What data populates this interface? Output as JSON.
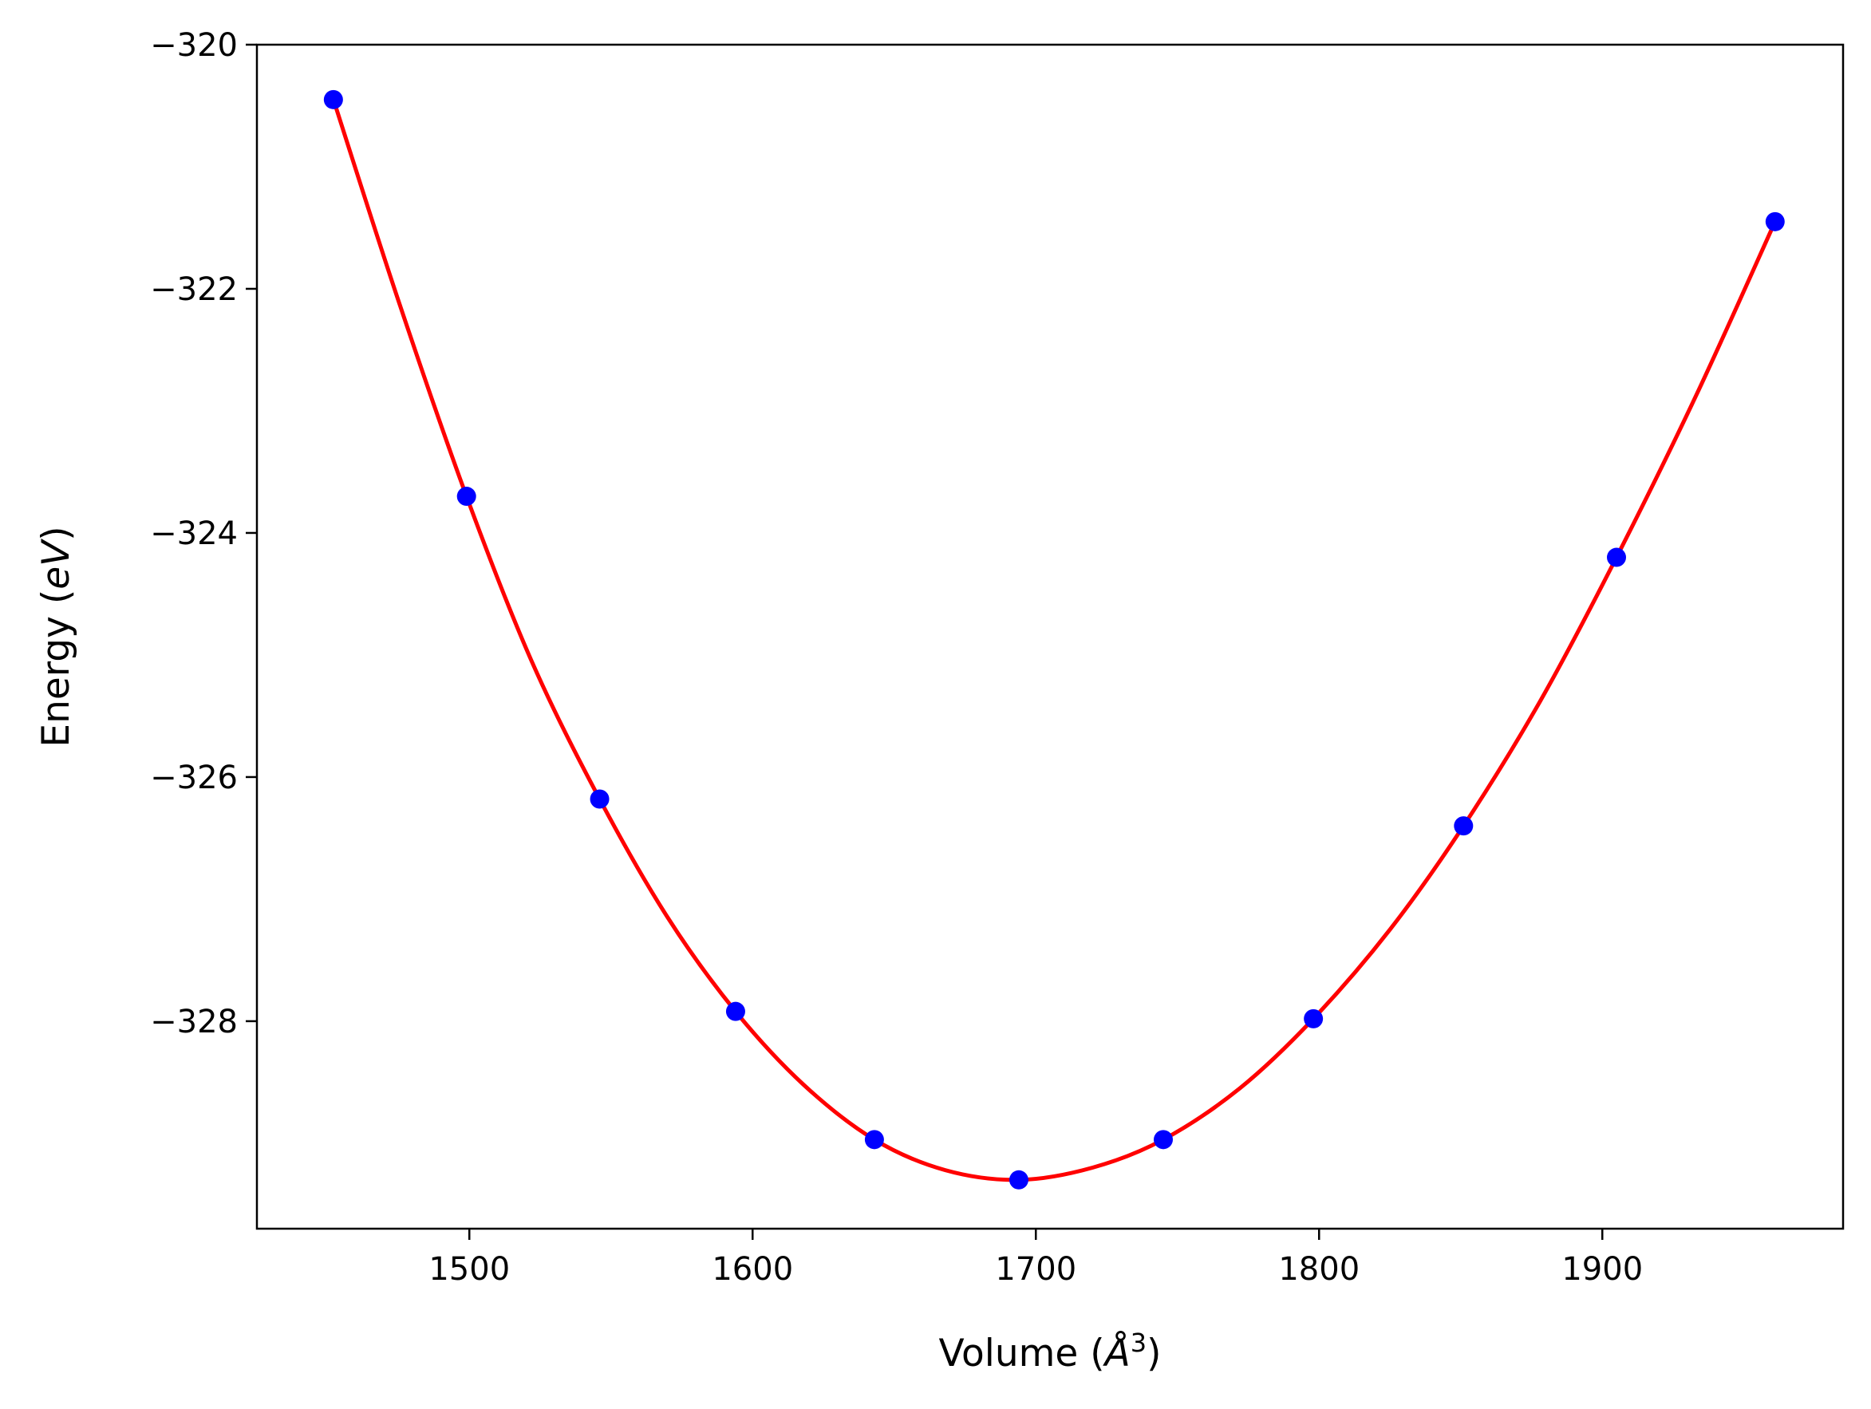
{
  "chart_data": {
    "type": "line",
    "xlabel": {
      "prefix": "Volume (",
      "italic": "Å",
      "sup": "3",
      "suffix": ")"
    },
    "ylabel": {
      "prefix": "Energy (",
      "italic": "eV",
      "suffix": ")"
    },
    "xlim": [
      1425,
      1985
    ],
    "ylim": [
      -329.7,
      -320.0
    ],
    "xticks": [
      1500,
      1600,
      1700,
      1800,
      1900
    ],
    "xtick_labels": [
      "1500",
      "1600",
      "1700",
      "1800",
      "1900"
    ],
    "yticks": [
      -320,
      -322,
      -324,
      -326,
      -328
    ],
    "ytick_labels": [
      "−320",
      "−322",
      "−324",
      "−326",
      "−328"
    ],
    "grid": false,
    "series": [
      {
        "kind": "scatter",
        "color": "#0000ff",
        "x": [
          1452,
          1499,
          1546,
          1594,
          1643,
          1694,
          1745,
          1798,
          1851,
          1905,
          1961
        ],
        "y": [
          -320.45,
          -323.7,
          -326.18,
          -327.92,
          -328.97,
          -329.3,
          -328.97,
          -327.98,
          -326.4,
          -324.2,
          -321.45
        ]
      },
      {
        "kind": "line",
        "color": "#ff0000",
        "x": [
          1452,
          1475,
          1499,
          1522,
          1546,
          1570,
          1594,
          1618,
          1643,
          1668,
          1694,
          1720,
          1745,
          1772,
          1798,
          1825,
          1851,
          1878,
          1905,
          1933,
          1961
        ],
        "y": [
          -320.45,
          -322.1,
          -323.7,
          -325.05,
          -326.18,
          -327.15,
          -327.92,
          -328.52,
          -328.97,
          -329.22,
          -329.3,
          -329.2,
          -328.97,
          -328.55,
          -327.98,
          -327.25,
          -326.4,
          -325.38,
          -324.2,
          -322.88,
          -321.45
        ]
      }
    ]
  }
}
